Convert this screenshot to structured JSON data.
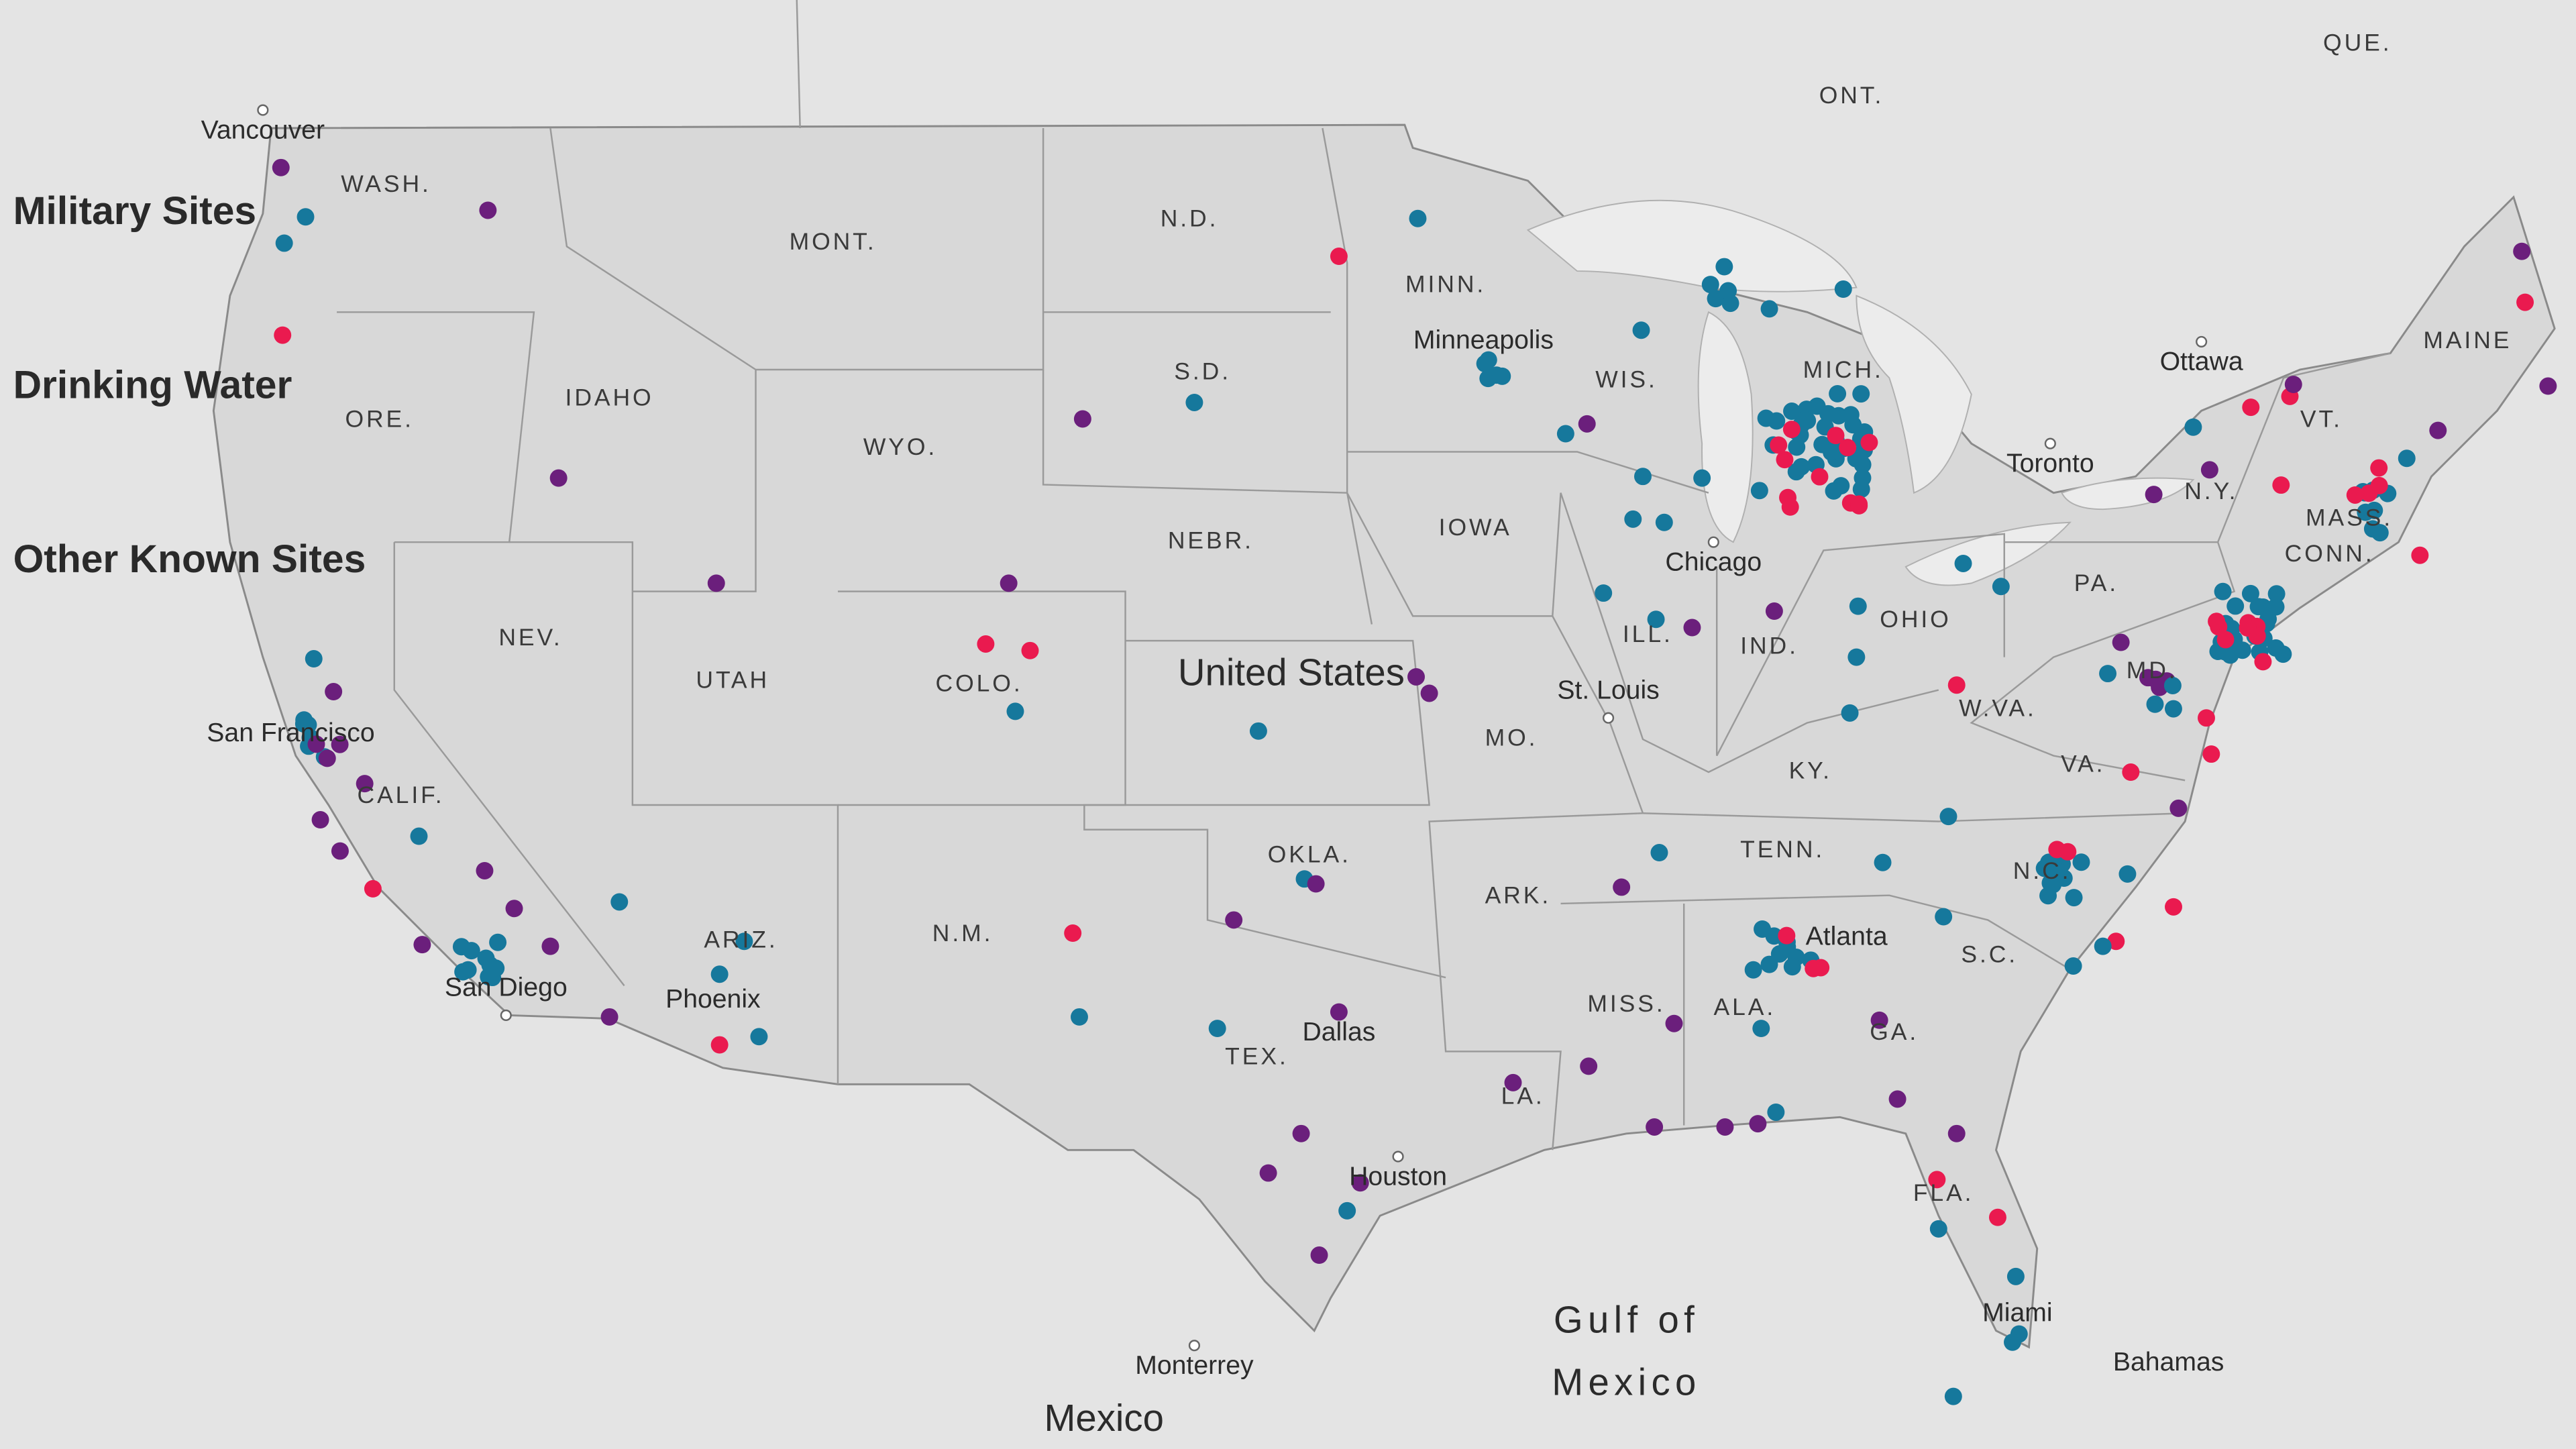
{
  "legend": {
    "items": [
      "Military Sites",
      "Drinking Water",
      "Other Known Sites"
    ]
  },
  "labels": {
    "states": [
      "WASH.",
      "MONT.",
      "N.D.",
      "MINN.",
      "ONT.",
      "QUE.",
      "WIS.",
      "MICH.",
      "MAINE",
      "N.Y.",
      "VT.",
      "MASS.",
      "CONN.",
      "PA.",
      "OHIO",
      "IND.",
      "ILL.",
      "IOWA",
      "NEBR.",
      "S.D.",
      "WYO.",
      "IDAHO",
      "ORE.",
      "NEV.",
      "UTAH",
      "COLO.",
      "MO.",
      "KY.",
      "W.VA.",
      "MD.",
      "VA.",
      "TENN.",
      "N.C.",
      "S.C.",
      "GA.",
      "ALA.",
      "MISS.",
      "ARK.",
      "OKLA.",
      "N.M.",
      "ARIZ.",
      "CALIF.",
      "TEX.",
      "LA.",
      "FLA."
    ],
    "cities": [
      "Vancouver",
      "Minneapolis",
      "Ottawa",
      "Toronto",
      "Chicago",
      "St. Louis",
      "Atlanta",
      "San Francisco",
      "San Diego",
      "Phoenix",
      "Dallas",
      "Houston",
      "Miami",
      "Monterrey",
      "Bahamas"
    ],
    "country": [
      "United States",
      "Mexico"
    ],
    "gulf": [
      "Gulf of",
      "Mexico"
    ]
  }
}
